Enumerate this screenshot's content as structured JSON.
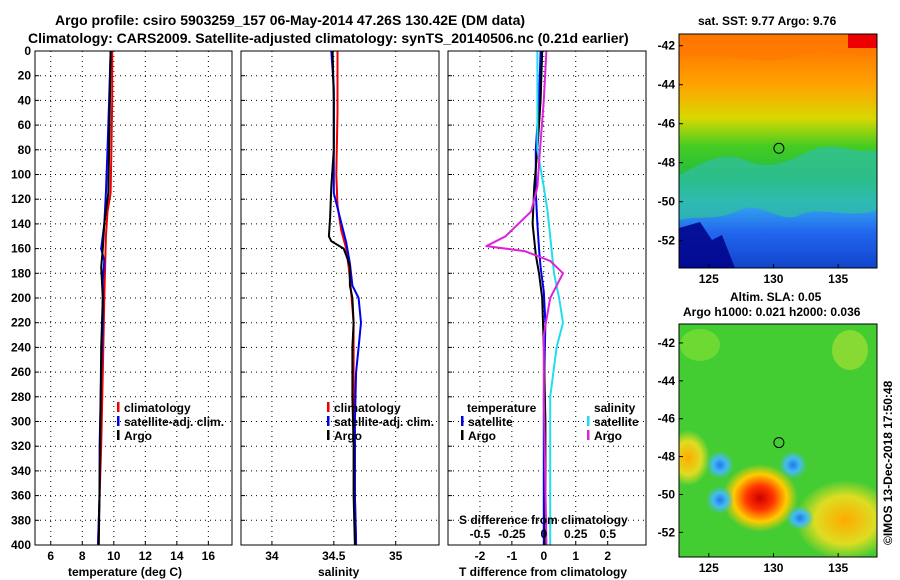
{
  "titles": {
    "line1": "Argo profile: csiro 5903259_157 06-May-2014 47.26S 130.42E (DM data)",
    "line2": "Climatology: CARS2009. Satellite-adjusted climatology: synTS_20140506.nc (0.21d earlier)"
  },
  "colors": {
    "climatology": "#ee0000",
    "satellite": "#0000ee",
    "argo": "#000000",
    "sat_s": "#22ddee",
    "argo_s": "#dd22dd"
  },
  "chart_data": [
    {
      "type": "line",
      "id": "temperature",
      "xlabel": "temperature (deg C)",
      "ylabel": "",
      "xlim": [
        5,
        17.5
      ],
      "ylim": [
        0,
        400
      ],
      "y_inverted": true,
      "xticks": [
        "6",
        "8",
        "10",
        "12",
        "14",
        "16"
      ],
      "yticks": [
        "0",
        "20",
        "40",
        "60",
        "80",
        "100",
        "120",
        "140",
        "160",
        "180",
        "200",
        "220",
        "240",
        "260",
        "280",
        "300",
        "320",
        "340",
        "360",
        "380",
        "400"
      ],
      "legend": [
        "climatology",
        "satellite-adj. clim.",
        "Argo"
      ],
      "series": [
        {
          "name": "climatology",
          "points": [
            [
              9.9,
              0
            ],
            [
              9.9,
              40
            ],
            [
              9.85,
              80
            ],
            [
              9.8,
              115
            ],
            [
              9.6,
              130
            ],
            [
              9.5,
              150
            ],
            [
              9.4,
              200
            ],
            [
              9.3,
              260
            ],
            [
              9.2,
              320
            ],
            [
              9.1,
              360
            ],
            [
              9.0,
              400
            ]
          ]
        },
        {
          "name": "satellite-adj. clim.",
          "points": [
            [
              9.8,
              0
            ],
            [
              9.7,
              40
            ],
            [
              9.6,
              80
            ],
            [
              9.5,
              115
            ],
            [
              9.4,
              140
            ],
            [
              9.2,
              160
            ],
            [
              9.4,
              170
            ],
            [
              9.3,
              185
            ],
            [
              9.3,
              220
            ],
            [
              9.2,
              260
            ],
            [
              9.1,
              320
            ],
            [
              9.1,
              360
            ],
            [
              9.0,
              400
            ]
          ]
        },
        {
          "name": "Argo",
          "points": [
            [
              9.8,
              0
            ],
            [
              9.75,
              40
            ],
            [
              9.7,
              80
            ],
            [
              9.65,
              115
            ],
            [
              9.4,
              140
            ],
            [
              9.3,
              160
            ],
            [
              9.2,
              175
            ],
            [
              9.3,
              200
            ],
            [
              9.2,
              240
            ],
            [
              9.15,
              300
            ],
            [
              9.1,
              350
            ],
            [
              9.05,
              400
            ]
          ]
        }
      ]
    },
    {
      "type": "line",
      "id": "salinity",
      "xlabel": "salinity",
      "xlim": [
        33.75,
        35.35
      ],
      "ylim": [
        0,
        400
      ],
      "y_inverted": true,
      "xticks": [
        "34",
        "34.5",
        "35"
      ],
      "legend": [
        "climatology",
        "satellite-adj. clim.",
        "Argo"
      ],
      "series": [
        {
          "name": "climatology",
          "points": [
            [
              34.53,
              0
            ],
            [
              34.53,
              50
            ],
            [
              34.52,
              100
            ],
            [
              34.53,
              125
            ],
            [
              34.56,
              145
            ],
            [
              34.6,
              160
            ],
            [
              34.62,
              175
            ],
            [
              34.64,
              195
            ],
            [
              34.66,
              220
            ],
            [
              34.66,
              260
            ],
            [
              34.67,
              320
            ],
            [
              34.67,
              360
            ],
            [
              34.68,
              400
            ]
          ]
        },
        {
          "name": "satellite-adj. clim.",
          "points": [
            [
              34.48,
              0
            ],
            [
              34.5,
              30
            ],
            [
              34.5,
              60
            ],
            [
              34.5,
              95
            ],
            [
              34.5,
              115
            ],
            [
              34.55,
              135
            ],
            [
              34.6,
              155
            ],
            [
              34.63,
              172
            ],
            [
              34.65,
              190
            ],
            [
              34.7,
              200
            ],
            [
              34.72,
              220
            ],
            [
              34.7,
              240
            ],
            [
              34.68,
              260
            ],
            [
              34.67,
              300
            ],
            [
              34.67,
              360
            ],
            [
              34.68,
              400
            ]
          ]
        },
        {
          "name": "Argo",
          "points": [
            [
              34.49,
              0
            ],
            [
              34.5,
              40
            ],
            [
              34.5,
              80
            ],
            [
              34.48,
              110
            ],
            [
              34.47,
              135
            ],
            [
              34.46,
              150
            ],
            [
              34.48,
              154
            ],
            [
              34.58,
              160
            ],
            [
              34.61,
              168
            ],
            [
              34.63,
              175
            ],
            [
              34.63,
              190
            ],
            [
              34.65,
              200
            ],
            [
              34.66,
              220
            ],
            [
              34.65,
              240
            ],
            [
              34.65,
              280
            ],
            [
              34.66,
              320
            ],
            [
              34.66,
              360
            ],
            [
              34.67,
              400
            ]
          ]
        }
      ]
    },
    {
      "type": "line",
      "id": "difference",
      "xlabel": "T difference from climatology",
      "xlabel2": "S difference from climatology",
      "xlim": [
        -3,
        3.2
      ],
      "ylim": [
        0,
        400
      ],
      "y_inverted": true,
      "xticks": [
        "-2",
        "-1",
        "0",
        "1",
        "2"
      ],
      "xticks2": [
        "-0.5",
        "-0.25",
        "0",
        "0.25",
        "0.5"
      ],
      "legend_left_title": "temperature",
      "legend_right_title": "salinity",
      "legend": [
        "satellite",
        "Argo",
        "satellite",
        "Argo"
      ],
      "series": [
        {
          "name": "T satellite",
          "points": [
            [
              -0.1,
              0
            ],
            [
              -0.15,
              40
            ],
            [
              -0.25,
              80
            ],
            [
              -0.25,
              115
            ],
            [
              -0.2,
              140
            ],
            [
              -0.15,
              160
            ],
            [
              -0.1,
              175
            ],
            [
              0.0,
              195
            ],
            [
              0.05,
              220
            ],
            [
              0.0,
              280
            ],
            [
              0.0,
              400
            ]
          ]
        },
        {
          "name": "T Argo",
          "points": [
            [
              -0.05,
              0
            ],
            [
              -0.1,
              40
            ],
            [
              -0.2,
              80
            ],
            [
              -0.3,
              110
            ],
            [
              -0.35,
              140
            ],
            [
              -0.25,
              165
            ],
            [
              -0.15,
              180
            ],
            [
              -0.05,
              200
            ],
            [
              0.0,
              240
            ],
            [
              0.05,
              300
            ],
            [
              0.05,
              400
            ]
          ]
        },
        {
          "name": "S satellite",
          "points": [
            [
              -0.05,
              0
            ],
            [
              -0.05,
              40
            ],
            [
              -0.05,
              80
            ],
            [
              0.0,
              110
            ],
            [
              0.03,
              130
            ],
            [
              0.05,
              150
            ],
            [
              0.08,
              180
            ],
            [
              0.12,
              200
            ],
            [
              0.15,
              220
            ],
            [
              0.1,
              240
            ],
            [
              0.05,
              280
            ],
            [
              0.05,
              400
            ]
          ]
        },
        {
          "name": "S Argo",
          "points": [
            [
              0.02,
              0
            ],
            [
              0.0,
              40
            ],
            [
              -0.03,
              80
            ],
            [
              -0.05,
              110
            ],
            [
              -0.1,
              130
            ],
            [
              -0.3,
              150
            ],
            [
              -0.45,
              158
            ],
            [
              -0.15,
              162
            ],
            [
              0.05,
              170
            ],
            [
              0.15,
              180
            ],
            [
              0.05,
              200
            ],
            [
              0.0,
              230
            ],
            [
              0.0,
              280
            ],
            [
              0.02,
              400
            ]
          ]
        }
      ]
    },
    {
      "type": "heatmap",
      "id": "sst-map",
      "title": "sat. SST: 9.77 Argo: 9.76",
      "xticks": [
        "125",
        "130",
        "135"
      ],
      "yticks": [
        "-42",
        "-44",
        "-46",
        "-48",
        "-50",
        "-52"
      ],
      "marker": {
        "lon": 130.42,
        "lat": -47.26
      }
    },
    {
      "type": "heatmap",
      "id": "sla-map",
      "title": "Altim. SLA: 0.05",
      "subtitle": "Argo h1000: 0.021 h2000: 0.036",
      "xticks": [
        "125",
        "130",
        "135"
      ],
      "yticks": [
        "-42",
        "-44",
        "-46",
        "-48",
        "-50",
        "-52"
      ],
      "marker": {
        "lon": 130.42,
        "lat": -47.26
      }
    }
  ],
  "credit": "©IMOS 13-Dec-2018 17:50:48"
}
